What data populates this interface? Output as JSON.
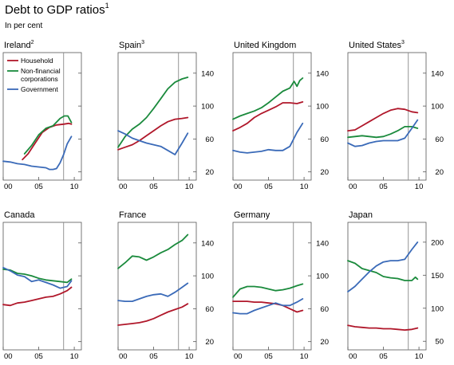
{
  "title": "Debt to GDP ratios",
  "title_note": "1",
  "subtitle": "In per cent",
  "colors": {
    "Household": "#b0172a",
    "Non-financial corporations": "#1a8a3c",
    "Government": "#3a6ab8",
    "frame": "#555555",
    "separator": "#8a8a8a"
  },
  "legend": [
    {
      "name": "Household",
      "lines": [
        "Household"
      ]
    },
    {
      "name": "Non-financial corporations",
      "lines": [
        "Non-financial",
        "corporations"
      ]
    },
    {
      "name": "Government",
      "lines": [
        "Government"
      ]
    }
  ],
  "chart_data": [
    {
      "type": "line",
      "title": "Ireland",
      "note": "2",
      "xlim": [
        2000,
        2011
      ],
      "xticks": [
        2000,
        2005,
        2010
      ],
      "xticklabels": [
        "00",
        "05",
        "10"
      ],
      "ylim": [
        10,
        165
      ],
      "yticks": [
        20,
        60,
        100,
        140
      ],
      "yticklabels": [],
      "separator_x": 2008.5,
      "series": [
        {
          "name": "Household",
          "x": [
            2002.7,
            2003.5,
            2004.5,
            2005.5,
            2006.5,
            2007.5,
            2008.5,
            2009.2,
            2009.6
          ],
          "y": [
            35,
            42,
            55,
            68,
            74,
            77,
            78,
            79,
            78
          ]
        },
        {
          "name": "Non-financial corporations",
          "x": [
            2003.0,
            2004.0,
            2005.0,
            2006.0,
            2007.0,
            2008.0,
            2008.6,
            2009.1,
            2009.6
          ],
          "y": [
            42,
            52,
            65,
            73,
            76,
            85,
            88,
            88,
            80
          ]
        },
        {
          "name": "Government",
          "x": [
            2000,
            2001,
            2002,
            2003,
            2004,
            2005,
            2006,
            2006.5,
            2007.0,
            2007.5,
            2008.0,
            2008.5,
            2009.0,
            2009.6
          ],
          "y": [
            33,
            32,
            30,
            29,
            27,
            26,
            25,
            23,
            23,
            24,
            31,
            41,
            54,
            63
          ]
        }
      ]
    },
    {
      "type": "line",
      "title": "Spain",
      "note": "3",
      "xlim": [
        2000,
        2011
      ],
      "xticks": [
        2000,
        2005,
        2010
      ],
      "xticklabels": [
        "00",
        "05",
        "10"
      ],
      "ylim": [
        10,
        165
      ],
      "yticks": [
        20,
        60,
        100,
        140
      ],
      "yticklabels": [
        "20",
        "60",
        "100",
        "140"
      ],
      "separator_x": 2008.5,
      "series": [
        {
          "name": "Household",
          "x": [
            2000,
            2001,
            2002,
            2003,
            2004,
            2005,
            2006,
            2007,
            2008,
            2009,
            2009.8
          ],
          "y": [
            47,
            50,
            53,
            58,
            64,
            70,
            76,
            81,
            84,
            85,
            86
          ]
        },
        {
          "name": "Non-financial corporations",
          "x": [
            2000,
            2001,
            2002,
            2003,
            2004,
            2005,
            2006,
            2007,
            2008,
            2009,
            2009.8
          ],
          "y": [
            50,
            63,
            72,
            78,
            86,
            97,
            109,
            121,
            129,
            133,
            135
          ]
        },
        {
          "name": "Government",
          "x": [
            2000,
            2001,
            2002,
            2003,
            2004,
            2005,
            2006,
            2007,
            2008,
            2009,
            2009.8
          ],
          "y": [
            70,
            66,
            61,
            58,
            55,
            53,
            51,
            46,
            41,
            55,
            67
          ]
        }
      ]
    },
    {
      "type": "line",
      "title": "United Kingdom",
      "note": "",
      "xlim": [
        2000,
        2011
      ],
      "xticks": [
        2000,
        2005,
        2010
      ],
      "xticklabels": [
        "00",
        "05",
        "10"
      ],
      "ylim": [
        10,
        165
      ],
      "yticks": [
        20,
        60,
        100,
        140
      ],
      "yticklabels": [
        "20",
        "60",
        "100",
        "140"
      ],
      "separator_x": 2008.5,
      "series": [
        {
          "name": "Household",
          "x": [
            2000,
            2001,
            2002,
            2003,
            2004,
            2005,
            2006,
            2007,
            2008,
            2009,
            2009.8
          ],
          "y": [
            70,
            74,
            79,
            86,
            91,
            95,
            99,
            104,
            104,
            103,
            105
          ]
        },
        {
          "name": "Non-financial corporations",
          "x": [
            2000,
            2001,
            2002,
            2003,
            2004,
            2005,
            2006,
            2007,
            2008,
            2008.6,
            2009.0,
            2009.4,
            2009.8
          ],
          "y": [
            84,
            88,
            91,
            94,
            98,
            104,
            111,
            118,
            122,
            130,
            124,
            131,
            134
          ]
        },
        {
          "name": "Government",
          "x": [
            2000,
            2001,
            2002,
            2003,
            2004,
            2005,
            2006,
            2007,
            2008,
            2009,
            2009.8
          ],
          "y": [
            46,
            44,
            43,
            44,
            45,
            47,
            46,
            46,
            51,
            68,
            79
          ]
        }
      ]
    },
    {
      "type": "line",
      "title": "United States",
      "note": "3",
      "xlim": [
        2000,
        2011
      ],
      "xticks": [
        2000,
        2005,
        2010
      ],
      "xticklabels": [
        "00",
        "05",
        "10"
      ],
      "ylim": [
        10,
        165
      ],
      "yticks": [
        20,
        60,
        100,
        140
      ],
      "yticklabels": [
        "20",
        "60",
        "100",
        "140"
      ],
      "separator_x": 2008.5,
      "series": [
        {
          "name": "Household",
          "x": [
            2000,
            2001,
            2002,
            2003,
            2004,
            2005,
            2006,
            2007,
            2008,
            2009,
            2009.8
          ],
          "y": [
            70,
            71,
            76,
            81,
            86,
            91,
            95,
            97,
            96,
            93,
            92
          ]
        },
        {
          "name": "Non-financial corporations",
          "x": [
            2000,
            2001,
            2002,
            2003,
            2004,
            2005,
            2006,
            2007,
            2008,
            2009,
            2009.8
          ],
          "y": [
            62,
            63,
            64,
            63,
            62,
            63,
            66,
            70,
            75,
            75,
            73
          ]
        },
        {
          "name": "Government",
          "x": [
            2000,
            2001,
            2002,
            2003,
            2004,
            2005,
            2006,
            2007,
            2008,
            2009,
            2009.8
          ],
          "y": [
            55,
            51,
            52,
            55,
            57,
            58,
            58,
            58,
            61,
            73,
            83
          ]
        }
      ]
    },
    {
      "type": "line",
      "title": "Canada",
      "note": "",
      "xlim": [
        2000,
        2011
      ],
      "xticks": [
        2000,
        2005,
        2010
      ],
      "xticklabels": [
        "00",
        "05",
        "10"
      ],
      "ylim": [
        10,
        165
      ],
      "yticks": [
        20,
        60,
        100,
        140
      ],
      "yticklabels": [],
      "separator_x": 2008.5,
      "series": [
        {
          "name": "Household",
          "x": [
            2000,
            2001,
            2002,
            2003,
            2004,
            2005,
            2006,
            2007,
            2008,
            2009,
            2009.6
          ],
          "y": [
            65,
            64,
            67,
            68,
            70,
            72,
            74,
            75,
            78,
            82,
            86
          ]
        },
        {
          "name": "Non-financial corporations",
          "x": [
            2000,
            2001,
            2002,
            2003,
            2004,
            2005,
            2006,
            2007,
            2008,
            2009,
            2009.6
          ],
          "y": [
            108,
            107,
            103,
            102,
            100,
            97,
            95,
            94,
            93,
            92,
            96
          ]
        },
        {
          "name": "Government",
          "x": [
            2000,
            2001,
            2002,
            2003,
            2004,
            2005,
            2006,
            2007,
            2008,
            2009,
            2009.6
          ],
          "y": [
            110,
            106,
            101,
            99,
            93,
            95,
            92,
            89,
            85,
            87,
            94
          ]
        }
      ]
    },
    {
      "type": "line",
      "title": "France",
      "note": "",
      "xlim": [
        2000,
        2011
      ],
      "xticks": [
        2000,
        2005,
        2010
      ],
      "xticklabels": [
        "00",
        "05",
        "10"
      ],
      "ylim": [
        10,
        165
      ],
      "yticks": [
        20,
        60,
        100,
        140
      ],
      "yticklabels": [
        "20",
        "60",
        "100",
        "140"
      ],
      "separator_x": 2008.5,
      "series": [
        {
          "name": "Household",
          "x": [
            2000,
            2001,
            2002,
            2003,
            2004,
            2005,
            2006,
            2007,
            2008,
            2009,
            2009.8
          ],
          "y": [
            40,
            41,
            42,
            43,
            45,
            48,
            52,
            56,
            59,
            62,
            66
          ]
        },
        {
          "name": "Non-financial corporations",
          "x": [
            2000,
            2001,
            2002,
            2003,
            2004,
            2005,
            2006,
            2007,
            2008,
            2009,
            2009.8
          ],
          "y": [
            109,
            116,
            124,
            123,
            119,
            123,
            128,
            132,
            138,
            143,
            150
          ]
        },
        {
          "name": "Government",
          "x": [
            2000,
            2001,
            2002,
            2003,
            2004,
            2005,
            2006,
            2007,
            2008,
            2009,
            2009.8
          ],
          "y": [
            70,
            69,
            69,
            72,
            75,
            77,
            78,
            75,
            80,
            86,
            91
          ]
        }
      ]
    },
    {
      "type": "line",
      "title": "Germany",
      "note": "",
      "xlim": [
        2000,
        2011
      ],
      "xticks": [
        2000,
        2005,
        2010
      ],
      "xticklabels": [
        "00",
        "05",
        "10"
      ],
      "ylim": [
        10,
        165
      ],
      "yticks": [
        20,
        60,
        100,
        140
      ],
      "yticklabels": [
        "20",
        "60",
        "100",
        "140"
      ],
      "separator_x": 2008.5,
      "series": [
        {
          "name": "Household",
          "x": [
            2000,
            2001,
            2002,
            2003,
            2004,
            2005,
            2006,
            2007,
            2008,
            2009,
            2009.8
          ],
          "y": [
            69,
            69,
            69,
            68,
            68,
            67,
            66,
            64,
            60,
            56,
            58
          ]
        },
        {
          "name": "Non-financial corporations",
          "x": [
            2000,
            2001,
            2002,
            2003,
            2004,
            2005,
            2006,
            2007,
            2008,
            2009,
            2009.8
          ],
          "y": [
            74,
            84,
            87,
            87,
            86,
            84,
            82,
            83,
            85,
            88,
            90
          ]
        },
        {
          "name": "Government",
          "x": [
            2000,
            2001,
            2002,
            2003,
            2004,
            2005,
            2006,
            2007,
            2008,
            2009,
            2009.8
          ],
          "y": [
            55,
            54,
            54,
            58,
            61,
            64,
            67,
            64,
            64,
            68,
            72
          ]
        }
      ]
    },
    {
      "type": "line",
      "title": "Japan",
      "note": "",
      "xlim": [
        2000,
        2011
      ],
      "xticks": [
        2000,
        2005,
        2010
      ],
      "xticklabels": [
        "00",
        "05",
        "10"
      ],
      "ylim": [
        37,
        230
      ],
      "yticks": [
        50,
        100,
        150,
        200
      ],
      "yticklabels": [
        "50",
        "100",
        "150",
        "200"
      ],
      "separator_x": 2008.5,
      "series": [
        {
          "name": "Household",
          "x": [
            2000,
            2001,
            2002,
            2003,
            2004,
            2005,
            2006,
            2007,
            2008,
            2009,
            2009.8
          ],
          "y": [
            74,
            72,
            71,
            70,
            70,
            69,
            69,
            68,
            67,
            68,
            70
          ]
        },
        {
          "name": "Non-financial corporations",
          "x": [
            2000,
            2001,
            2002,
            2003,
            2004,
            2005,
            2006,
            2007,
            2008,
            2009,
            2009.5,
            2009.8
          ],
          "y": [
            172,
            168,
            160,
            157,
            154,
            148,
            146,
            145,
            142,
            142,
            147,
            144
          ]
        },
        {
          "name": "Government",
          "x": [
            2000,
            2001,
            2002,
            2003,
            2004,
            2005,
            2006,
            2007,
            2008,
            2009,
            2009.8
          ],
          "y": [
            125,
            133,
            144,
            155,
            164,
            170,
            172,
            172,
            174,
            189,
            200
          ]
        }
      ]
    }
  ]
}
